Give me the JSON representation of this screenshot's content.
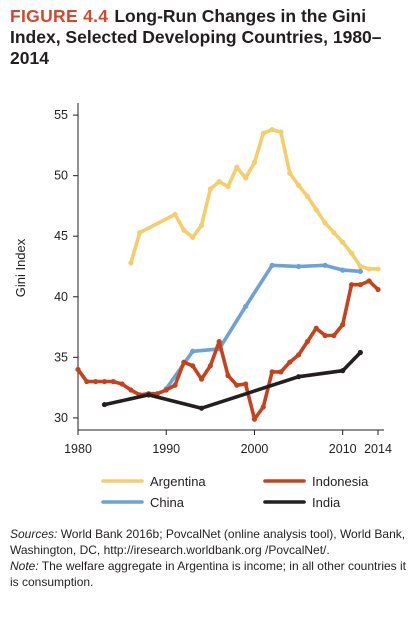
{
  "figure": {
    "label": "FIGURE 4.4",
    "title": "Long-Run Changes in the Gini Index, Selected Developing Countries, 1980–2014"
  },
  "colors": {
    "argentina": "#f5cd6b",
    "china": "#6da2d6",
    "indonesia": "#c7421c",
    "india": "#231f20",
    "label": "#d6472b"
  },
  "chart_data": {
    "type": "line",
    "title": "",
    "xlabel": "",
    "ylabel": "Gini Index",
    "xlim": [
      1980,
      2014
    ],
    "ylim": [
      29,
      56
    ],
    "xticks": [
      1980,
      1990,
      2000,
      2010,
      2014
    ],
    "yticks": [
      30,
      35,
      40,
      45,
      50,
      55
    ],
    "grid": false,
    "legend_position": "bottom",
    "series": [
      {
        "name": "Argentina",
        "color": "#f5cd6b",
        "x": [
          1986,
          1987,
          1991,
          1992,
          1993,
          1994,
          1995,
          1996,
          1997,
          1998,
          1999,
          2000,
          2001,
          2002,
          2003,
          2004,
          2005,
          2006,
          2007,
          2008,
          2009,
          2010,
          2011,
          2012,
          2013,
          2014
        ],
        "y": [
          42.8,
          45.3,
          46.8,
          45.5,
          44.9,
          45.9,
          48.9,
          49.5,
          49.1,
          50.7,
          49.8,
          51.1,
          53.5,
          53.8,
          53.6,
          50.2,
          49.2,
          48.3,
          47.2,
          46.1,
          45.3,
          44.5,
          43.6,
          42.5,
          42.3,
          42.3
        ]
      },
      {
        "name": "Indonesia",
        "color": "#c7421c",
        "x": [
          1980,
          1981,
          1982,
          1983,
          1984,
          1985,
          1986,
          1987,
          1988,
          1989,
          1990,
          1991,
          1992,
          1993,
          1994,
          1995,
          1996,
          1997,
          1998,
          1999,
          2000,
          2001,
          2002,
          2003,
          2004,
          2005,
          2006,
          2007,
          2008,
          2009,
          2010,
          2011,
          2012,
          2013,
          2014
        ],
        "y": [
          34.0,
          33.0,
          33.0,
          33.0,
          33.0,
          32.8,
          32.3,
          31.9,
          32.0,
          32.0,
          32.3,
          32.7,
          34.6,
          34.3,
          33.2,
          34.3,
          36.3,
          33.5,
          32.7,
          32.8,
          29.9,
          30.9,
          33.8,
          33.8,
          34.6,
          35.2,
          36.3,
          37.4,
          36.8,
          36.8,
          37.7,
          41.0,
          41.0,
          41.3,
          40.6
        ]
      },
      {
        "name": "China",
        "color": "#6da2d6",
        "x": [
          1990,
          1993,
          1996,
          1999,
          2002,
          2005,
          2008,
          2010,
          2012
        ],
        "y": [
          32.4,
          35.5,
          35.7,
          39.2,
          42.6,
          42.5,
          42.6,
          42.2,
          42.1
        ]
      },
      {
        "name": "India",
        "color": "#231f20",
        "x": [
          1983,
          1988,
          1994,
          2005,
          2010,
          2012
        ],
        "y": [
          31.1,
          31.9,
          30.8,
          33.4,
          33.9,
          35.4
        ]
      }
    ]
  },
  "legend": {
    "entries": [
      "Argentina",
      "Indonesia",
      "China",
      "India"
    ]
  },
  "footnotes": {
    "sources_label": "Sources:",
    "sources_text": " World Bank 2016b; PovcalNet (online analysis tool), World Bank, Washington, DC, http://iresearch.worldbank.org /PovcalNet/.",
    "note_label": "Note:",
    "note_text": " The welfare aggregate in Argentina is income; in all other countries it is consumption."
  }
}
